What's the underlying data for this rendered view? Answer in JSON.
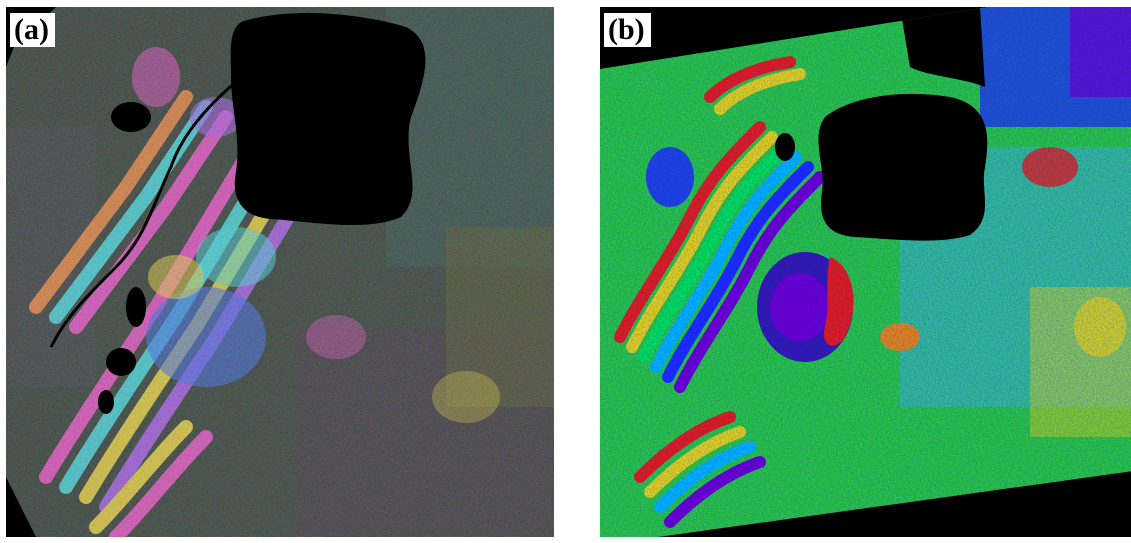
{
  "panels": [
    {
      "label": "(a)",
      "description_colors": {
        "background": "#000000",
        "terrain": "#2f3a35",
        "fringe_colors": [
          "#ff4fd8",
          "#43e6f0",
          "#ffe23a",
          "#3b6cff",
          "#ff8a3d",
          "#b35cff"
        ]
      }
    },
    {
      "label": "(b)",
      "description_colors": {
        "background": "#000000",
        "base": "#2fe02f",
        "fringe_colors": [
          "#ff2200",
          "#ffee00",
          "#00ff44",
          "#00ccff",
          "#2233ff",
          "#7a00cc",
          "#ff9900"
        ]
      }
    }
  ]
}
